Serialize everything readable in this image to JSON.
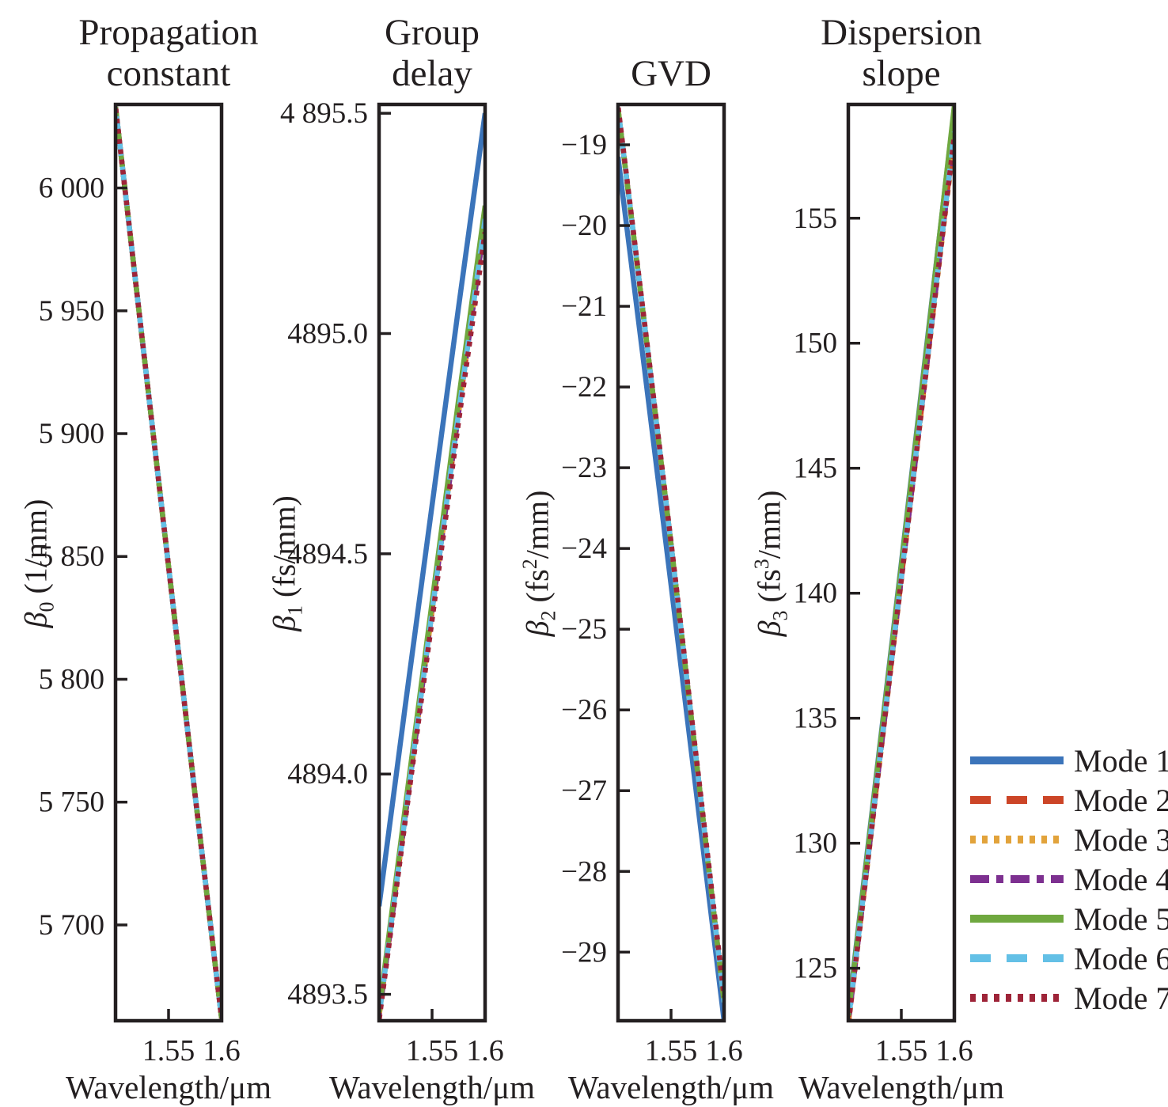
{
  "figure": {
    "legend": {
      "items": [
        {
          "label": "Mode 1",
          "color": "#3b74ba",
          "style": "solid"
        },
        {
          "label": "Mode 2",
          "color": "#cc4527",
          "style": "dash"
        },
        {
          "label": "Mode 3",
          "color": "#e2a33b",
          "style": "dot"
        },
        {
          "label": "Mode 4",
          "color": "#7d3090",
          "style": "dashdot"
        },
        {
          "label": "Mode 5",
          "color": "#6fa83f",
          "style": "solid"
        },
        {
          "label": "Mode 6",
          "color": "#63c0e6",
          "style": "dash"
        },
        {
          "label": "Mode 7",
          "color": "#9e2438",
          "style": "dot"
        }
      ]
    }
  },
  "chart_data": [
    {
      "type": "line",
      "title": "Propagation\nconstant",
      "xlabel": "Wavelength/μm",
      "ylabel": {
        "base": "β",
        "sub": "0",
        "unit_pre": " (1/mm)",
        "unit_sup": "",
        "unit_post": ""
      },
      "x": [
        1.5,
        1.525,
        1.55,
        1.575,
        1.6
      ],
      "xlim": [
        1.5,
        1.6
      ],
      "ylim": [
        5661,
        6034
      ],
      "xticks": [
        {
          "v": 1.55,
          "label": "1.55"
        },
        {
          "v": 1.6,
          "label": "1.6"
        }
      ],
      "yticks": [
        {
          "v": 6000,
          "label": "6 000"
        },
        {
          "v": 5950,
          "label": "5 950"
        },
        {
          "v": 5900,
          "label": "5 900"
        },
        {
          "v": 5850,
          "label": "5 850"
        },
        {
          "v": 5800,
          "label": "5 800"
        },
        {
          "v": 5750,
          "label": "5 750"
        },
        {
          "v": 5700,
          "label": "5 700"
        }
      ],
      "series": [
        {
          "name": "Mode 1",
          "values": [
            6033,
            5939,
            5846,
            5753,
            5662
          ]
        },
        {
          "name": "Mode 2",
          "values": [
            6033,
            5939,
            5846,
            5753,
            5662
          ]
        },
        {
          "name": "Mode 3",
          "values": [
            6033,
            5939,
            5846,
            5753,
            5662
          ]
        },
        {
          "name": "Mode 4",
          "values": [
            6033,
            5939,
            5846,
            5753,
            5662
          ]
        },
        {
          "name": "Mode 5",
          "values": [
            6033,
            5939,
            5846,
            5753,
            5662
          ]
        },
        {
          "name": "Mode 6",
          "values": [
            6033,
            5939,
            5846,
            5753,
            5662
          ]
        },
        {
          "name": "Mode 7",
          "values": [
            6033,
            5939,
            5846,
            5753,
            5662
          ]
        }
      ]
    },
    {
      "type": "line",
      "title": "Group\ndelay",
      "xlabel": "Wavelength/μm",
      "ylabel": {
        "base": "β",
        "sub": "1",
        "unit_pre": " (fs/mm)",
        "unit_sup": "",
        "unit_post": ""
      },
      "x": [
        1.5,
        1.525,
        1.55,
        1.575,
        1.6
      ],
      "xlim": [
        1.5,
        1.6
      ],
      "ylim": [
        4893.44,
        4895.52
      ],
      "xticks": [
        {
          "v": 1.55,
          "label": "1.55"
        },
        {
          "v": 1.6,
          "label": "1.6"
        }
      ],
      "yticks": [
        {
          "v": 4895.5,
          "label": "4 895.5"
        },
        {
          "v": 4895.0,
          "label": "4895.0"
        },
        {
          "v": 4894.5,
          "label": "4894.5"
        },
        {
          "v": 4894.0,
          "label": "4894.0"
        },
        {
          "v": 4893.5,
          "label": "4893.5"
        }
      ],
      "series": [
        {
          "name": "Mode 1",
          "values": [
            4893.7,
            4894.16,
            4894.61,
            4895.06,
            4895.5
          ]
        },
        {
          "name": "Mode 2",
          "values": [
            4893.45,
            4893.91,
            4894.37,
            4894.82,
            4895.26
          ]
        },
        {
          "name": "Mode 3",
          "values": [
            4893.45,
            4893.91,
            4894.37,
            4894.82,
            4895.26
          ]
        },
        {
          "name": "Mode 4",
          "values": [
            4893.45,
            4893.91,
            4894.37,
            4894.82,
            4895.26
          ]
        },
        {
          "name": "Mode 5",
          "values": [
            4893.46,
            4893.93,
            4894.39,
            4894.85,
            4895.29
          ]
        },
        {
          "name": "Mode 6",
          "values": [
            4893.45,
            4893.91,
            4894.37,
            4894.82,
            4895.26
          ]
        },
        {
          "name": "Mode 7",
          "values": [
            4893.44,
            4893.9,
            4894.35,
            4894.8,
            4895.23
          ]
        }
      ]
    },
    {
      "type": "line",
      "title": "GVD",
      "xlabel": "Wavelength/μm",
      "ylabel": {
        "base": "β",
        "sub": "2",
        "unit_pre": " (fs",
        "unit_sup": "2",
        "unit_post": "/mm)"
      },
      "x": [
        1.5,
        1.525,
        1.55,
        1.575,
        1.6
      ],
      "xlim": [
        1.5,
        1.6
      ],
      "ylim": [
        -29.85,
        -18.5
      ],
      "xticks": [
        {
          "v": 1.55,
          "label": "1.55"
        },
        {
          "v": 1.6,
          "label": "1.6"
        }
      ],
      "yticks": [
        {
          "v": -19,
          "label": "−19"
        },
        {
          "v": -20,
          "label": "−20"
        },
        {
          "v": -21,
          "label": "−21"
        },
        {
          "v": -22,
          "label": "−22"
        },
        {
          "v": -23,
          "label": "−23"
        },
        {
          "v": -24,
          "label": "−24"
        },
        {
          "v": -25,
          "label": "−25"
        },
        {
          "v": -26,
          "label": "−26"
        },
        {
          "v": -27,
          "label": "−27"
        },
        {
          "v": -28,
          "label": "−28"
        },
        {
          "v": -29,
          "label": "−29"
        }
      ],
      "series": [
        {
          "name": "Mode 1",
          "values": [
            -19.15,
            -21.78,
            -24.45,
            -27.15,
            -29.85
          ]
        },
        {
          "name": "Mode 2",
          "values": [
            -18.55,
            -21.23,
            -23.95,
            -26.76,
            -29.62
          ]
        },
        {
          "name": "Mode 3",
          "values": [
            -18.55,
            -21.23,
            -23.95,
            -26.76,
            -29.62
          ]
        },
        {
          "name": "Mode 4",
          "values": [
            -18.55,
            -21.23,
            -23.95,
            -26.76,
            -29.62
          ]
        },
        {
          "name": "Mode 5",
          "values": [
            -18.55,
            -21.23,
            -23.95,
            -26.76,
            -29.62
          ]
        },
        {
          "name": "Mode 6",
          "values": [
            -18.55,
            -21.23,
            -23.95,
            -26.76,
            -29.62
          ]
        },
        {
          "name": "Mode 7",
          "values": [
            -18.52,
            -21.2,
            -23.92,
            -26.72,
            -29.55
          ]
        }
      ]
    },
    {
      "type": "line",
      "title": "Dispersion\nslope",
      "xlabel": "Wavelength/μm",
      "ylabel": {
        "base": "β",
        "sub": "3",
        "unit_pre": " (fs",
        "unit_sup": "3",
        "unit_post": "/mm)"
      },
      "x": [
        1.5,
        1.525,
        1.55,
        1.575,
        1.6
      ],
      "xlim": [
        1.5,
        1.6
      ],
      "ylim": [
        122.9,
        159.55
      ],
      "xticks": [
        {
          "v": 1.55,
          "label": "1.55"
        },
        {
          "v": 1.6,
          "label": "1.6"
        }
      ],
      "yticks": [
        {
          "v": 155,
          "label": "155"
        },
        {
          "v": 150,
          "label": "150"
        },
        {
          "v": 145,
          "label": "145"
        },
        {
          "v": 140,
          "label": "140"
        },
        {
          "v": 135,
          "label": "135"
        },
        {
          "v": 130,
          "label": "130"
        },
        {
          "v": 125,
          "label": "125"
        }
      ],
      "series": [
        {
          "name": "Mode 1",
          "values": [
            123.2,
            132.2,
            141.2,
            150.3,
            159.4
          ]
        },
        {
          "name": "Mode 2",
          "values": [
            122.8,
            131.7,
            140.6,
            149.5,
            158.4
          ]
        },
        {
          "name": "Mode 3",
          "values": [
            122.7,
            131.6,
            140.5,
            149.4,
            158.2
          ]
        },
        {
          "name": "Mode 4",
          "values": [
            122.8,
            131.7,
            140.6,
            149.5,
            158.4
          ]
        },
        {
          "name": "Mode 5",
          "values": [
            123.1,
            132.1,
            141.1,
            150.2,
            159.5
          ]
        },
        {
          "name": "Mode 6",
          "values": [
            122.85,
            131.75,
            140.65,
            149.55,
            158.45
          ]
        },
        {
          "name": "Mode 7",
          "values": [
            122.75,
            131.65,
            140.55,
            149.45,
            158.3
          ]
        }
      ]
    }
  ]
}
